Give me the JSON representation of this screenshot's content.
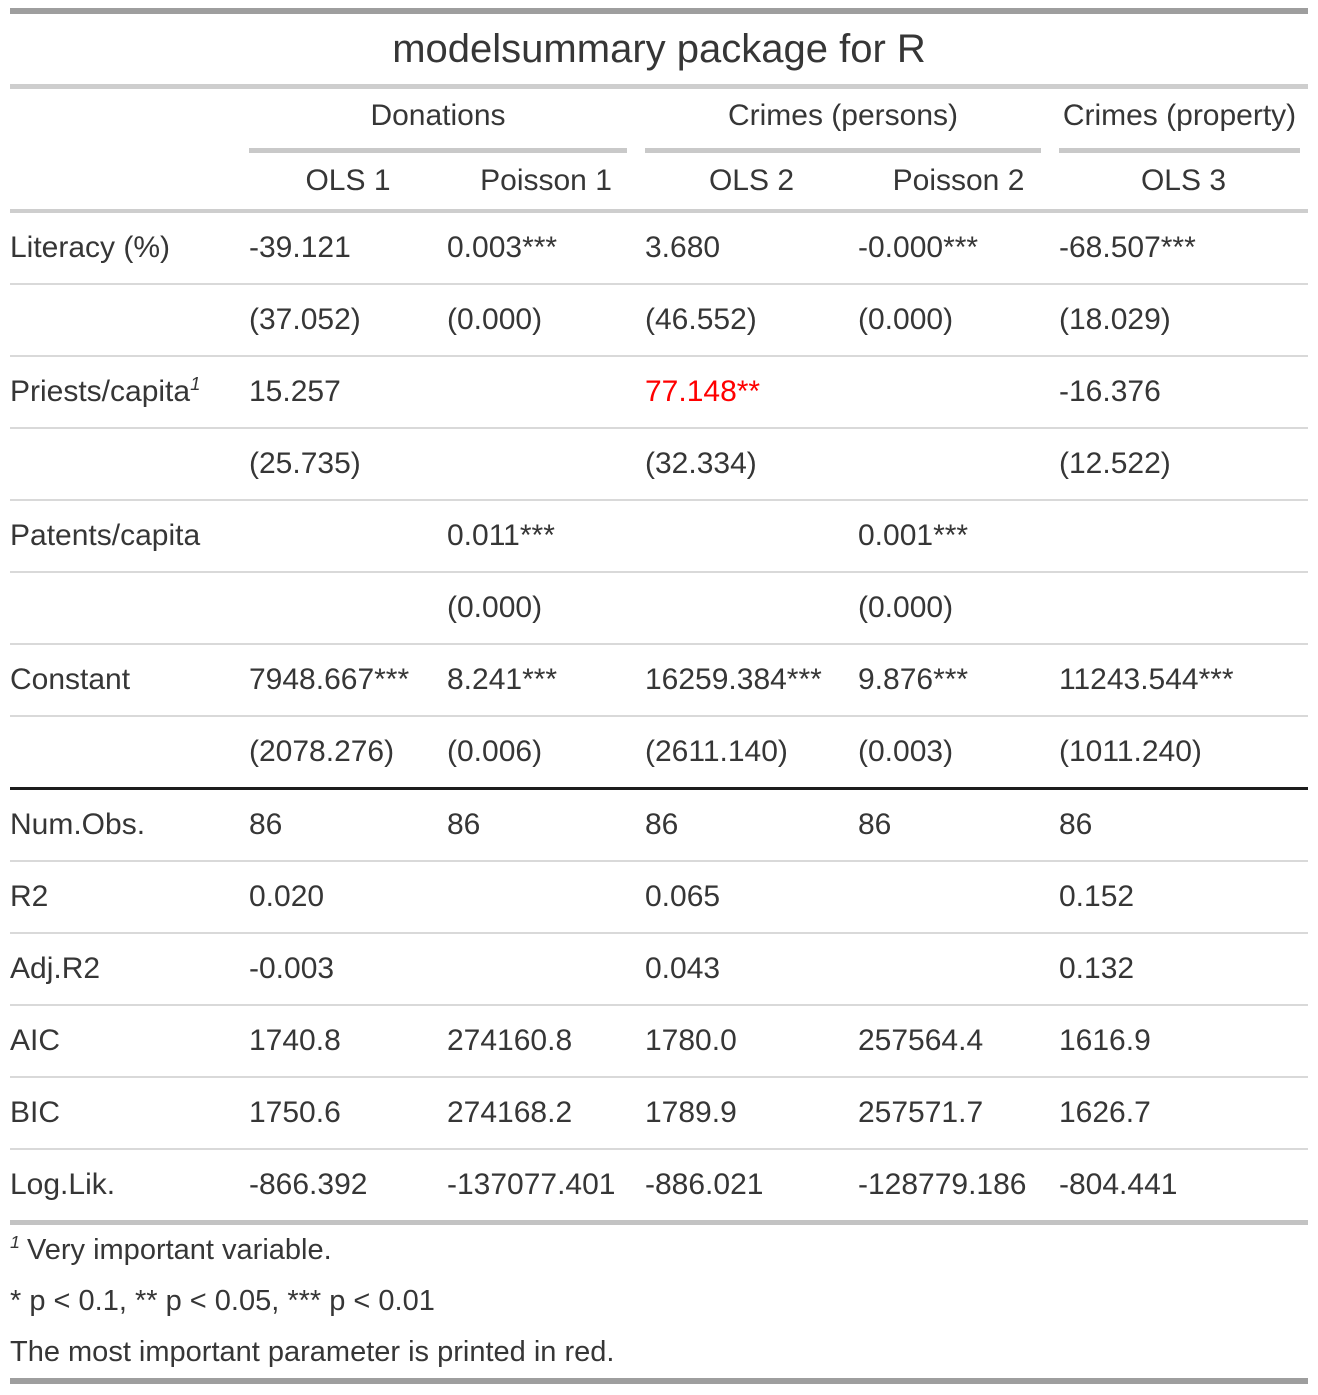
{
  "title": "modelsummary package for R",
  "colors": {
    "text": "#363636",
    "highlight_red": "#ff0000",
    "heavy_rule": "#9e9e9e",
    "mid_rule": "#cecece",
    "light_rule": "#d9d9d9",
    "black_rule": "#1c1c1c"
  },
  "table": {
    "spanners": [
      {
        "label": "Donations"
      },
      {
        "label": "Crimes (persons)"
      },
      {
        "label": "Crimes (property)"
      }
    ],
    "model_headers": [
      "OLS 1",
      "Poisson 1",
      "OLS 2",
      "Poisson 2",
      "OLS 3"
    ],
    "coef_rows": [
      {
        "label": "Literacy (%)",
        "values": [
          "-39.121",
          "0.003***",
          "3.680",
          "-0.000***",
          "-68.507***"
        ]
      },
      {
        "label": "",
        "values": [
          "(37.052)",
          "(0.000)",
          "(46.552)",
          "(0.000)",
          "(18.029)"
        ]
      },
      {
        "label": "Priests/capita",
        "label_sup": "1",
        "values": [
          "15.257",
          "",
          "77.148**",
          "",
          "-16.376"
        ],
        "red_cols": [
          2
        ]
      },
      {
        "label": "",
        "values": [
          "(25.735)",
          "",
          "(32.334)",
          "",
          "(12.522)"
        ]
      },
      {
        "label": "Patents/capita",
        "values": [
          "",
          "0.011***",
          "",
          "0.001***",
          ""
        ]
      },
      {
        "label": "",
        "values": [
          "",
          "(0.000)",
          "",
          "(0.000)",
          ""
        ]
      },
      {
        "label": "Constant",
        "values": [
          "7948.667***",
          "8.241***",
          "16259.384***",
          "9.876***",
          "11243.544***"
        ]
      },
      {
        "label": "",
        "values": [
          "(2078.276)",
          "(0.006)",
          "(2611.140)",
          "(0.003)",
          "(1011.240)"
        ]
      }
    ],
    "gof_rows": [
      {
        "label": "Num.Obs.",
        "values": [
          "86",
          "86",
          "86",
          "86",
          "86"
        ]
      },
      {
        "label": "R2",
        "values": [
          "0.020",
          "",
          "0.065",
          "",
          "0.152"
        ]
      },
      {
        "label": "Adj.R2",
        "values": [
          "-0.003",
          "",
          "0.043",
          "",
          "0.132"
        ]
      },
      {
        "label": "AIC",
        "values": [
          "1740.8",
          "274160.8",
          "1780.0",
          "257564.4",
          "1616.9"
        ]
      },
      {
        "label": "BIC",
        "values": [
          "1750.6",
          "274168.2",
          "1789.9",
          "257571.7",
          "1626.7"
        ]
      },
      {
        "label": "Log.Lik.",
        "values": [
          "-866.392",
          "-137077.401",
          "-886.021",
          "-128779.186",
          "-804.441"
        ]
      }
    ],
    "footnotes": [
      {
        "sup": "1",
        "text": "Very important variable."
      },
      {
        "text": "* p < 0.1, ** p < 0.05, *** p < 0.01"
      },
      {
        "text": "The most important parameter is printed in red."
      }
    ]
  }
}
